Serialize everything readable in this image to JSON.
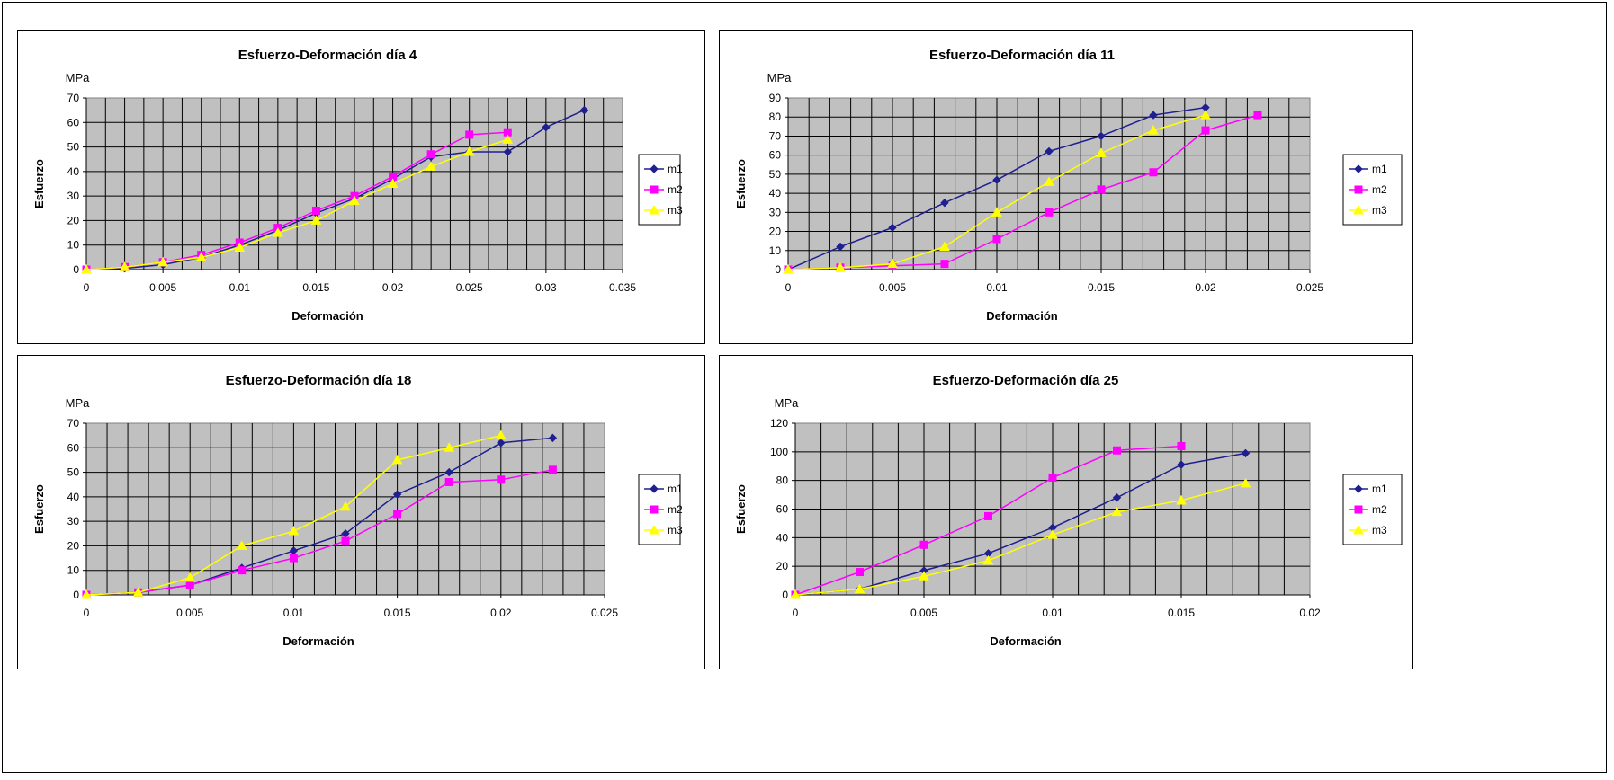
{
  "chart_data": [
    {
      "type": "line",
      "title": "Esfuerzo-Deformación día 4",
      "unit_label": "MPa",
      "xlabel": "Deformación",
      "ylabel": "Esfuerzo",
      "xlim": [
        0,
        0.035
      ],
      "ylim": [
        0,
        70
      ],
      "x_ticks": [
        "0",
        "0.005",
        "0.01",
        "0.015",
        "0.02",
        "0.025",
        "0.03",
        "0.035"
      ],
      "y_ticks": [
        "0",
        "10",
        "20",
        "30",
        "40",
        "50",
        "60",
        "70"
      ],
      "grid": true,
      "legend_position": "right",
      "series": [
        {
          "name": "m1",
          "color": "#1f1f8f",
          "marker": "diamond",
          "x": [
            0,
            0.0025,
            0.005,
            0.0075,
            0.01,
            0.0125,
            0.015,
            0.0175,
            0.02,
            0.0225,
            0.025,
            0.0275,
            0.03,
            0.0325
          ],
          "y": [
            0,
            0.5,
            2,
            5,
            10,
            16,
            23,
            29,
            37,
            46,
            48,
            48,
            58,
            65
          ]
        },
        {
          "name": "m2",
          "color": "#ff00ff",
          "marker": "square",
          "x": [
            0,
            0.0025,
            0.005,
            0.0075,
            0.01,
            0.0125,
            0.015,
            0.0175,
            0.02,
            0.0225,
            0.025,
            0.0275
          ],
          "y": [
            0,
            1,
            3,
            6,
            11,
            17,
            24,
            30,
            38,
            47,
            55,
            56
          ]
        },
        {
          "name": "m3",
          "color": "#ffff00",
          "marker": "triangle",
          "x": [
            0,
            0.0025,
            0.005,
            0.0075,
            0.01,
            0.0125,
            0.015,
            0.0175,
            0.02,
            0.0225,
            0.025,
            0.0275
          ],
          "y": [
            0,
            1,
            3,
            5,
            9,
            15,
            20,
            28,
            35,
            42,
            48,
            53
          ]
        }
      ]
    },
    {
      "type": "line",
      "title": "Esfuerzo-Deformación día 11",
      "unit_label": "MPa",
      "xlabel": "Deformación",
      "ylabel": "Esfuerzo",
      "xlim": [
        0,
        0.025
      ],
      "ylim": [
        0,
        90
      ],
      "x_ticks": [
        "0",
        "0.005",
        "0.01",
        "0.015",
        "0.02",
        "0.025"
      ],
      "y_ticks": [
        "0",
        "10",
        "20",
        "30",
        "40",
        "50",
        "60",
        "70",
        "80",
        "90"
      ],
      "grid": true,
      "legend_position": "right",
      "series": [
        {
          "name": "m1",
          "color": "#1f1f8f",
          "marker": "diamond",
          "x": [
            0,
            0.0025,
            0.005,
            0.0075,
            0.01,
            0.0125,
            0.015,
            0.0175,
            0.02
          ],
          "y": [
            0,
            12,
            22,
            35,
            47,
            62,
            70,
            81,
            85
          ]
        },
        {
          "name": "m2",
          "color": "#ff00ff",
          "marker": "square",
          "x": [
            0,
            0.0025,
            0.005,
            0.0075,
            0.01,
            0.0125,
            0.015,
            0.0175,
            0.02,
            0.0225
          ],
          "y": [
            0,
            1,
            2,
            3,
            16,
            30,
            42,
            51,
            73,
            81
          ]
        },
        {
          "name": "m3",
          "color": "#ffff00",
          "marker": "triangle",
          "x": [
            0,
            0.0025,
            0.005,
            0.0075,
            0.01,
            0.0125,
            0.015,
            0.0175,
            0.02
          ],
          "y": [
            0,
            1,
            3,
            12,
            30,
            46,
            61,
            73,
            81
          ]
        }
      ]
    },
    {
      "type": "line",
      "title": "Esfuerzo-Deformación día 18",
      "unit_label": "MPa",
      "xlabel": "Deformación",
      "ylabel": "Esfuerzo",
      "xlim": [
        0,
        0.025
      ],
      "ylim": [
        0,
        70
      ],
      "x_ticks": [
        "0",
        "0.005",
        "0.01",
        "0.015",
        "0.02",
        "0.025"
      ],
      "y_ticks": [
        "0",
        "10",
        "20",
        "30",
        "40",
        "50",
        "60",
        "70"
      ],
      "grid": true,
      "legend_position": "right",
      "series": [
        {
          "name": "m1",
          "color": "#1f1f8f",
          "marker": "diamond",
          "x": [
            0,
            0.0025,
            0.005,
            0.0075,
            0.01,
            0.0125,
            0.015,
            0.0175,
            0.02,
            0.0225
          ],
          "y": [
            0,
            1,
            4,
            11,
            18,
            25,
            41,
            50,
            62,
            64
          ]
        },
        {
          "name": "m2",
          "color": "#ff00ff",
          "marker": "square",
          "x": [
            0,
            0.0025,
            0.005,
            0.0075,
            0.01,
            0.0125,
            0.015,
            0.0175,
            0.02,
            0.0225
          ],
          "y": [
            0,
            1,
            4,
            10,
            15,
            22,
            33,
            46,
            47,
            51
          ]
        },
        {
          "name": "m3",
          "color": "#ffff00",
          "marker": "triangle",
          "x": [
            0,
            0.0025,
            0.005,
            0.0075,
            0.01,
            0.0125,
            0.015,
            0.0175,
            0.02
          ],
          "y": [
            0,
            1,
            7,
            20,
            26,
            36,
            55,
            60,
            65
          ]
        }
      ]
    },
    {
      "type": "line",
      "title": "Esfuerzo-Deformación día 25",
      "unit_label": "MPa",
      "xlabel": "Deformación",
      "ylabel": "Esfuerzo",
      "xlim": [
        0,
        0.02
      ],
      "ylim": [
        0,
        120
      ],
      "x_ticks": [
        "0",
        "0.005",
        "0.01",
        "0.015",
        "0.02"
      ],
      "y_ticks": [
        "0",
        "20",
        "40",
        "60",
        "80",
        "100",
        "120"
      ],
      "grid": true,
      "legend_position": "right",
      "series": [
        {
          "name": "m1",
          "color": "#1f1f8f",
          "marker": "diamond",
          "x": [
            0,
            0.0025,
            0.005,
            0.0075,
            0.01,
            0.0125,
            0.015,
            0.0175
          ],
          "y": [
            0,
            4,
            17,
            29,
            47,
            68,
            91,
            99
          ]
        },
        {
          "name": "m2",
          "color": "#ff00ff",
          "marker": "square",
          "x": [
            0,
            0.0025,
            0.005,
            0.0075,
            0.01,
            0.0125,
            0.015
          ],
          "y": [
            0,
            16,
            35,
            55,
            82,
            101,
            104
          ]
        },
        {
          "name": "m3",
          "color": "#ffff00",
          "marker": "triangle",
          "x": [
            0,
            0.0025,
            0.005,
            0.0075,
            0.01,
            0.0125,
            0.015,
            0.0175
          ],
          "y": [
            0,
            4,
            13,
            24,
            42,
            58,
            66,
            78
          ]
        }
      ]
    }
  ]
}
